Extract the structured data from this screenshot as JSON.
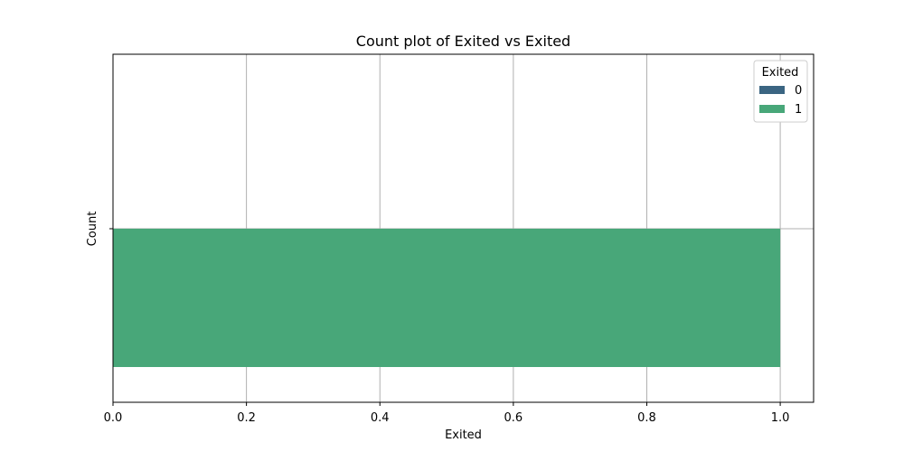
{
  "chart_data": {
    "type": "bar",
    "orientation": "horizontal",
    "title": "Count plot of Exited vs Exited",
    "xlabel": "Exited",
    "ylabel": "Count",
    "xlim": [
      0.0,
      1.05
    ],
    "xticks": [
      "0.0",
      "0.2",
      "0.4",
      "0.6",
      "0.8",
      "1.0"
    ],
    "xtick_values": [
      0,
      0.2,
      0.4,
      0.6,
      0.8,
      1.0
    ],
    "categories": [
      ""
    ],
    "series": [
      {
        "name": "0",
        "color": "#3b6582",
        "values": [
          0
        ]
      },
      {
        "name": "1",
        "color": "#48a779",
        "values": [
          1.0
        ]
      }
    ],
    "grid": true,
    "legend": {
      "title": "Exited",
      "placement": "top-right"
    }
  }
}
